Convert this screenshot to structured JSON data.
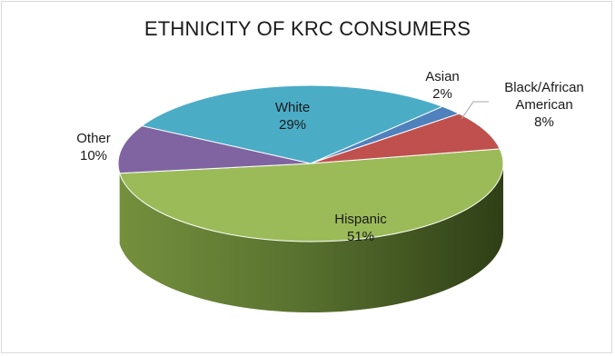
{
  "chart_data": {
    "type": "pie",
    "title": "ETHNICITY OF KRC CONSUMERS",
    "three_d": true,
    "slices": [
      {
        "name": "Hispanic",
        "value": 51,
        "label": "51%",
        "color": "#9bbb59"
      },
      {
        "name": "Other",
        "value": 10,
        "label": "10%",
        "color": "#8064a2"
      },
      {
        "name": "White",
        "value": 29,
        "label": "29%",
        "color": "#4bacc6"
      },
      {
        "name": "Asian",
        "value": 2,
        "label": "2%",
        "color": "#4f81bd"
      },
      {
        "name": "Black/African American",
        "value": 8,
        "label": "8%",
        "color": "#c0504d"
      }
    ]
  }
}
